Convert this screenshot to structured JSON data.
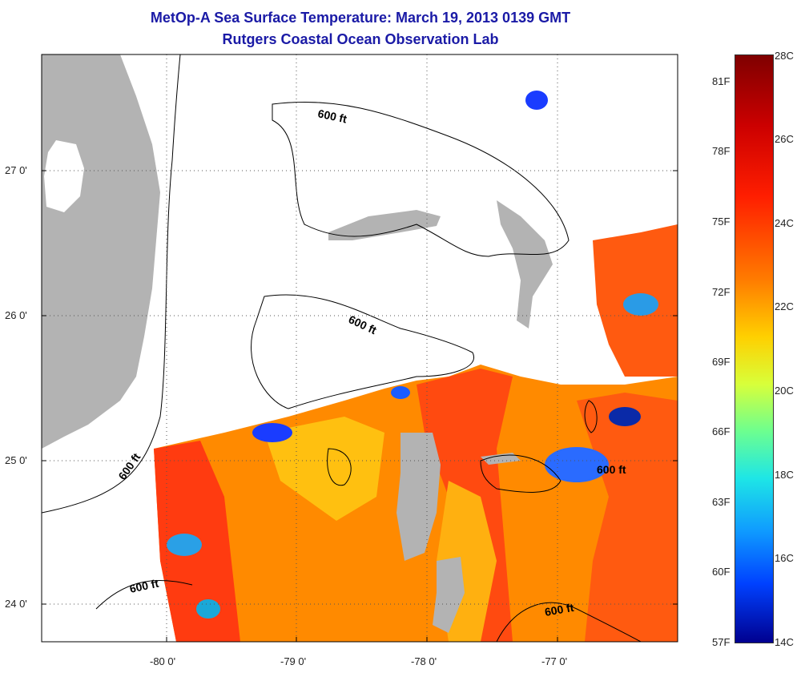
{
  "title": {
    "line1": "MetOp-A Sea Surface Temperature:  March 19, 2013 0139 GMT",
    "line2": "Rutgers Coastal Ocean Observation Lab"
  },
  "map": {
    "lat_ticks": [
      "27 0'",
      "26 0'",
      "25 0'",
      "24 0'"
    ],
    "lon_ticks": [
      "-80 0'",
      "-79 0'",
      "-78 0'",
      "-77 0'"
    ],
    "contour_labels": [
      "600 ft",
      "600 ft",
      "600 ft",
      "600 ft",
      "600 ft",
      "600 ft"
    ],
    "colors": {
      "land": "#b3b3b3",
      "no_data": "#ffffff",
      "contour": "#000000"
    }
  },
  "colorbar": {
    "fahrenheit_labels": [
      "81F",
      "78F",
      "75F",
      "72F",
      "69F",
      "66F",
      "63F",
      "60F",
      "57F"
    ],
    "celsius_labels": [
      "28C",
      "26C",
      "24C",
      "22C",
      "20C",
      "18C",
      "16C",
      "14C"
    ]
  }
}
